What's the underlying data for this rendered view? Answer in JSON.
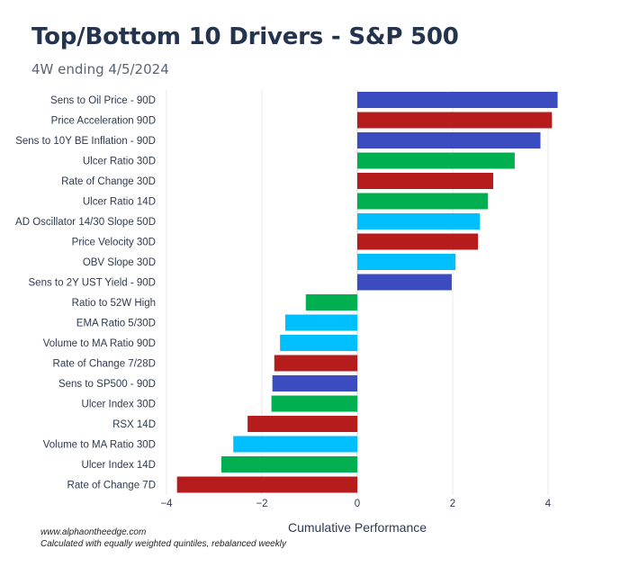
{
  "header": {
    "title": "Top/Bottom 10 Drivers - S&P 500",
    "subtitle": "4W ending 4/5/2024"
  },
  "footer": {
    "source": "www.alphaontheedge.com",
    "note": "Calculated with equally weighted quintiles, rebalanced weekly"
  },
  "chart_data": {
    "type": "bar",
    "orientation": "horizontal",
    "title": "",
    "xlabel": "Cumulative Performance",
    "ylabel": "",
    "xlim": [
      -4,
      4.3
    ],
    "xticks": [
      -4,
      -2,
      0,
      2,
      4
    ],
    "xtick_labels": [
      "−4",
      "−2",
      "0",
      "2",
      "4"
    ],
    "grid": true,
    "categories": [
      "Sens to Oil Price - 90D",
      "Price Acceleration 90D",
      "Sens to 10Y BE Inflation - 90D",
      "Ulcer Ratio 30D",
      "Rate of Change 30D",
      "Ulcer Ratio 14D",
      "AD Oscillator 14/30 Slope 50D",
      "Price Velocity 30D",
      "OBV Slope 30D",
      "Sens to 2Y UST Yield - 90D",
      "Ratio to 52W High",
      "EMA Ratio 5/30D",
      "Volume to MA Ratio 90D",
      "Rate of Change 7/28D",
      "Sens to SP500 - 90D",
      "Ulcer Index 30D",
      "RSX 14D",
      "Volume to MA Ratio 30D",
      "Ulcer Index 14D",
      "Rate of Change 7D"
    ],
    "values": [
      4.2,
      4.08,
      3.84,
      3.3,
      2.85,
      2.74,
      2.57,
      2.53,
      2.06,
      1.98,
      -1.08,
      -1.51,
      -1.62,
      -1.74,
      -1.78,
      -1.8,
      -2.3,
      -2.6,
      -2.85,
      -3.78
    ],
    "bar_colors": [
      "#3b4cc0",
      "#b71c1c",
      "#3b4cc0",
      "#00b050",
      "#b71c1c",
      "#00b050",
      "#00bfff",
      "#b71c1c",
      "#00bfff",
      "#3b4cc0",
      "#00b050",
      "#00bfff",
      "#00bfff",
      "#b71c1c",
      "#3b4cc0",
      "#00b050",
      "#b71c1c",
      "#00bfff",
      "#00b050",
      "#b71c1c"
    ]
  }
}
